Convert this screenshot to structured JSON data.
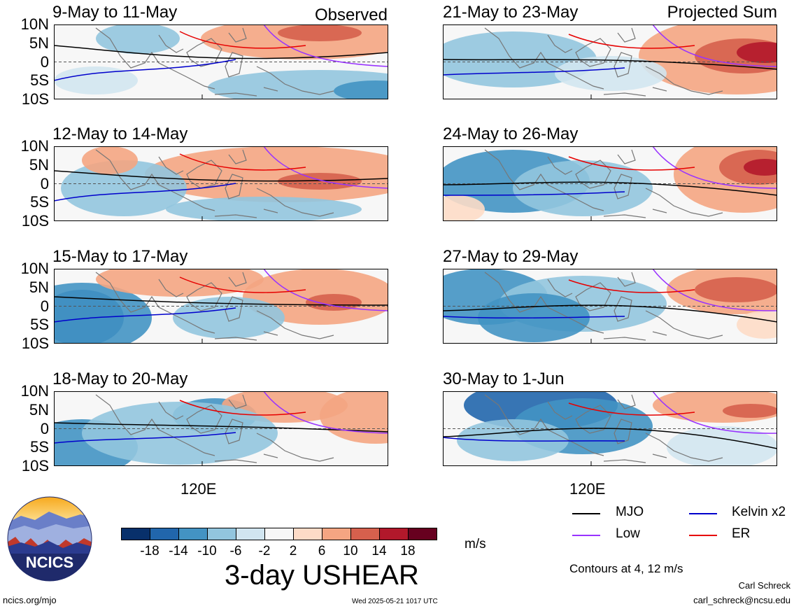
{
  "panels": [
    {
      "title": "9-May to 11-May",
      "label": "Observed",
      "pattern": 0
    },
    {
      "title": "12-May to 14-May",
      "label": "",
      "pattern": 1
    },
    {
      "title": "15-May to 17-May",
      "label": "",
      "pattern": 2
    },
    {
      "title": "18-May to 20-May",
      "label": "",
      "pattern": 3
    },
    {
      "title": "21-May to 23-May",
      "label": "Projected Sum",
      "pattern": 4
    },
    {
      "title": "24-May to 26-May",
      "label": "",
      "pattern": 5
    },
    {
      "title": "27-May to 29-May",
      "label": "",
      "pattern": 6
    },
    {
      "title": "30-May to 1-Jun",
      "label": "",
      "pattern": 7
    }
  ],
  "lat_labels": [
    "10N",
    "5N",
    "0",
    "5S",
    "10S"
  ],
  "x_label": "120E",
  "colorbar": {
    "colors": [
      "#08306b",
      "#2166ac",
      "#4393c3",
      "#92c5de",
      "#d1e5f0",
      "#f7f7f7",
      "#fddbc7",
      "#f4a582",
      "#d6604d",
      "#b2182b",
      "#67001f"
    ],
    "ticks": [
      "-18",
      "-14",
      "-10",
      "-6",
      "-2",
      "2",
      "6",
      "10",
      "14",
      "18"
    ],
    "units": "m/s"
  },
  "field_title": "3-day USHEAR",
  "legend": {
    "items": [
      {
        "label": "MJO",
        "color": "#000000"
      },
      {
        "label": "Kelvin x2",
        "color": "#0000cc"
      },
      {
        "label": "Low",
        "color": "#9933ff"
      },
      {
        "label": "ER",
        "color": "#e60000"
      }
    ],
    "contours": "Contours at 4, 12 m/s"
  },
  "logo": {
    "text": "NCICS"
  },
  "footer": {
    "url": "ncics.org/mjo",
    "timestamp": "Wed 2025-05-21 1017 UTC",
    "author": "Carl Schreck",
    "email": "carl_schreck@ncsu.edu"
  }
}
